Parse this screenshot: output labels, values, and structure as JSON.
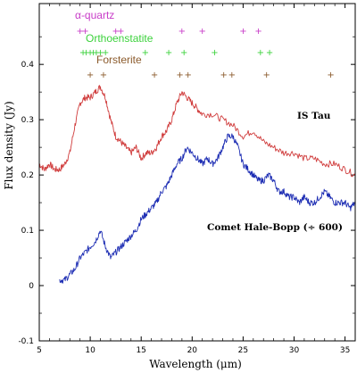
{
  "chart_data": {
    "type": "line",
    "xlabel": "Wavelength (μm)",
    "ylabel": "Flux density (Jy)",
    "xlim": [
      5,
      36
    ],
    "ylim": [
      -0.1,
      0.51
    ],
    "x_ticks": [
      5,
      10,
      15,
      20,
      25,
      30,
      35
    ],
    "y_ticks": [
      -0.1,
      0,
      0.1,
      0.2,
      0.3,
      0.4
    ],
    "series": [
      {
        "name": "IS Tau",
        "color": "#d03c3c",
        "x": [
          5.0,
          5.5,
          6.0,
          6.5,
          7.0,
          7.5,
          8.0,
          8.5,
          9.0,
          9.5,
          10.0,
          10.5,
          11.0,
          11.5,
          12.0,
          12.5,
          13.0,
          13.5,
          14.0,
          14.5,
          15.0,
          15.5,
          16.0,
          16.5,
          17.0,
          17.5,
          18.0,
          18.5,
          19.0,
          19.5,
          20.0,
          20.5,
          21.0,
          22.0,
          23.0,
          24.0,
          25.0,
          26.0,
          27.0,
          28.0,
          29.0,
          30.0,
          31.0,
          32.0,
          33.0,
          34.0,
          35.0,
          36.0
        ],
        "y": [
          0.22,
          0.21,
          0.22,
          0.21,
          0.21,
          0.22,
          0.24,
          0.29,
          0.33,
          0.34,
          0.34,
          0.35,
          0.36,
          0.34,
          0.3,
          0.27,
          0.26,
          0.25,
          0.24,
          0.25,
          0.23,
          0.24,
          0.24,
          0.25,
          0.27,
          0.28,
          0.3,
          0.33,
          0.35,
          0.34,
          0.33,
          0.32,
          0.31,
          0.31,
          0.3,
          0.29,
          0.27,
          0.28,
          0.26,
          0.25,
          0.24,
          0.24,
          0.23,
          0.23,
          0.22,
          0.22,
          0.21,
          0.2
        ]
      },
      {
        "name": "Comet Hale-Bopp (÷ 600)",
        "color": "#1f2fb4",
        "x": [
          7.0,
          7.5,
          8.0,
          8.5,
          9.0,
          9.5,
          10.0,
          10.5,
          11.0,
          11.5,
          12.0,
          12.5,
          13.0,
          13.5,
          14.0,
          14.5,
          15.0,
          15.5,
          16.0,
          16.5,
          17.0,
          17.5,
          18.0,
          18.5,
          19.0,
          19.5,
          20.0,
          20.5,
          21.0,
          21.5,
          22.0,
          22.5,
          23.0,
          23.5,
          24.0,
          24.5,
          25.0,
          25.5,
          26.0,
          26.5,
          27.0,
          27.5,
          28.0,
          28.5,
          29.0,
          29.5,
          30.0,
          30.5,
          31.0,
          31.5,
          32.0,
          32.5,
          33.0,
          33.5,
          34.0,
          34.5,
          35.0,
          35.5,
          36.0
        ],
        "y": [
          0.01,
          0.01,
          0.02,
          0.03,
          0.05,
          0.06,
          0.07,
          0.08,
          0.1,
          0.07,
          0.05,
          0.06,
          0.07,
          0.08,
          0.09,
          0.1,
          0.12,
          0.13,
          0.14,
          0.15,
          0.17,
          0.18,
          0.2,
          0.22,
          0.23,
          0.25,
          0.24,
          0.23,
          0.22,
          0.23,
          0.22,
          0.23,
          0.25,
          0.27,
          0.27,
          0.25,
          0.22,
          0.21,
          0.2,
          0.19,
          0.19,
          0.2,
          0.19,
          0.17,
          0.17,
          0.16,
          0.16,
          0.15,
          0.16,
          0.15,
          0.15,
          0.16,
          0.17,
          0.16,
          0.15,
          0.15,
          0.15,
          0.14,
          0.15
        ]
      }
    ],
    "mineral_markers": [
      {
        "name": "α-quartz",
        "color": "#c83cc8",
        "y": 0.461,
        "x": [
          9.0,
          9.5,
          12.5,
          13.0,
          19.0,
          21.0,
          25.0,
          26.5
        ]
      },
      {
        "name": "Orthoenstatite",
        "color": "#3cd23c",
        "y": 0.422,
        "x": [
          9.3,
          9.6,
          10.0,
          10.3,
          10.6,
          11.0,
          11.5,
          15.4,
          17.7,
          19.2,
          22.2,
          26.7,
          27.6
        ]
      },
      {
        "name": "Forsterite",
        "color": "#8b5a2b",
        "y": 0.382,
        "x": [
          10.0,
          11.3,
          16.3,
          18.8,
          19.6,
          23.1,
          23.9,
          27.3,
          33.6
        ]
      }
    ]
  }
}
